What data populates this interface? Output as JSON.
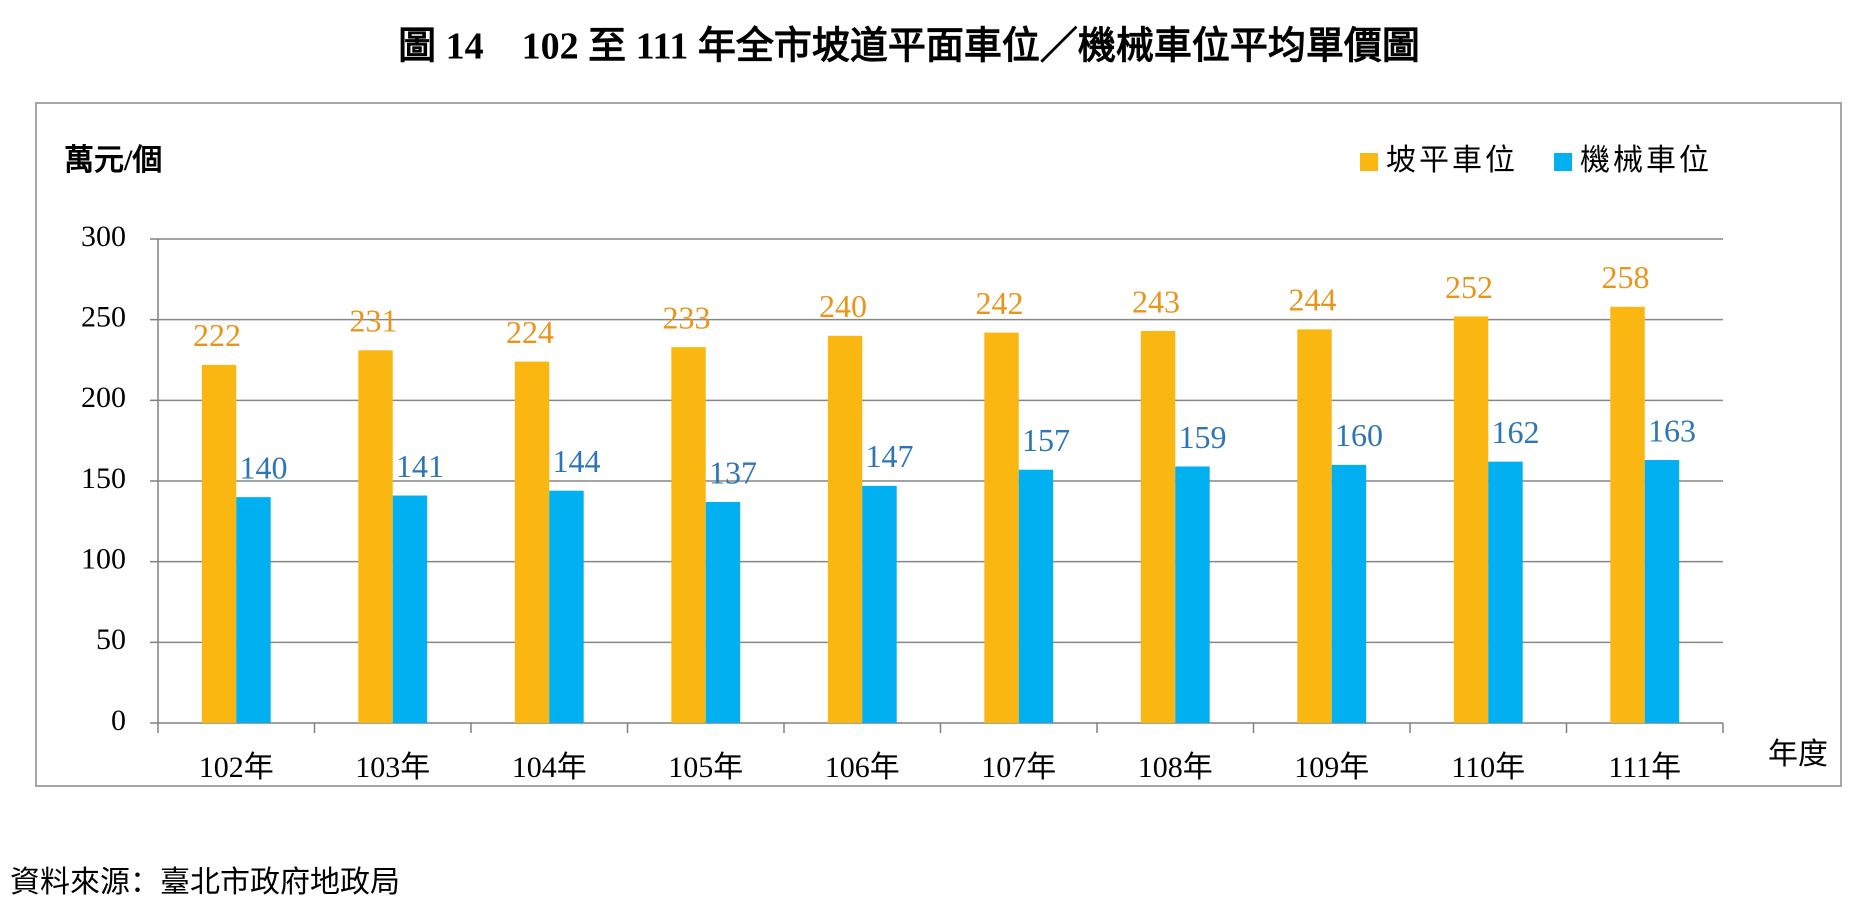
{
  "chart_data": {
    "type": "bar",
    "title": "圖 14　102 至 111 年全市坡道平面車位／機械車位平均單價圖",
    "y_axis_label": "萬元/個",
    "x_axis_label": "年度",
    "categories": [
      "102年",
      "103年",
      "104年",
      "105年",
      "106年",
      "107年",
      "108年",
      "109年",
      "110年",
      "111年"
    ],
    "series": [
      {
        "name": "坡平車位",
        "color": "#FBB711",
        "label_color": "#E9951C",
        "values": [
          222,
          231,
          224,
          233,
          240,
          242,
          243,
          244,
          252,
          258
        ]
      },
      {
        "name": "機械車位",
        "color": "#00B0F0",
        "label_color": "#2E75B6",
        "values": [
          140,
          141,
          144,
          137,
          147,
          157,
          159,
          160,
          162,
          163
        ]
      }
    ],
    "ylim": [
      0,
      300
    ],
    "yticks": [
      0,
      50,
      100,
      150,
      200,
      250,
      300
    ],
    "grid": true,
    "legend": "top-right"
  },
  "source": "資料來源：臺北市政府地政局"
}
